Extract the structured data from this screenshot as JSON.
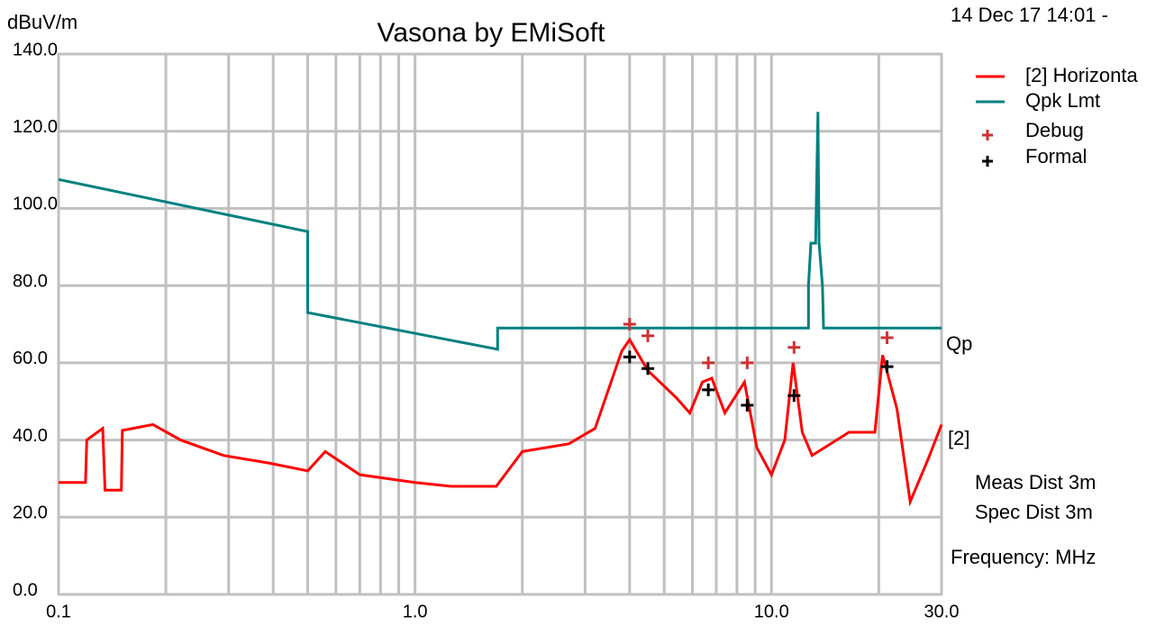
{
  "chart_data": {
    "type": "line",
    "title": "Vasona by EMiSoft",
    "y_label": "dBuV/m",
    "timestamp": "14 Dec 17 14:01 -",
    "x_scale": "log",
    "grid": true,
    "xlim": [
      0.1,
      30
    ],
    "ylim": [
      0,
      140
    ],
    "xticks": [
      0.1,
      {
        "value": 1,
        "label": "1.0"
      },
      {
        "value": 10,
        "label": "10.0"
      },
      {
        "value": 30,
        "label": "30.0"
      }
    ],
    "xminor": [
      0.2,
      0.3,
      0.4,
      0.5,
      0.6,
      0.7,
      0.8,
      0.9,
      2,
      3,
      4,
      5,
      6,
      7,
      8,
      9,
      20
    ],
    "yticks": [
      {
        "value": 0,
        "label": "0.0"
      },
      {
        "value": 20,
        "label": "20.0"
      },
      {
        "value": 40,
        "label": "40.0"
      },
      {
        "value": 60,
        "label": "60.0"
      },
      {
        "value": 80,
        "label": "80.0"
      },
      {
        "value": 100,
        "label": "100.0"
      },
      {
        "value": 120,
        "label": "120.0"
      },
      {
        "value": 140,
        "label": "140.0"
      }
    ],
    "series": [
      {
        "name": "[2] Horizonta",
        "color": "#ff0000",
        "x": [
          0.1,
          0.119,
          0.12,
          0.133,
          0.135,
          0.15,
          0.151,
          0.184,
          0.22,
          0.29,
          0.39,
          0.5,
          0.56,
          0.7,
          1.0,
          1.26,
          1.69,
          2.0,
          2.7,
          3.2,
          3.8,
          4.0,
          4.5,
          5.4,
          5.9,
          6.4,
          6.8,
          7.4,
          8.4,
          9.1,
          10.0,
          10.9,
          11.5,
          12.2,
          13.0,
          16.5,
          19.5,
          20.5,
          22.5,
          24.5,
          27.5,
          30
        ],
        "values": [
          29,
          29,
          40,
          43,
          27,
          27,
          42.5,
          44,
          40,
          36,
          34,
          32,
          37,
          31,
          29,
          28,
          28,
          37,
          39,
          43,
          63,
          66,
          58,
          51,
          47,
          55,
          56,
          47,
          55,
          38,
          31,
          40,
          60,
          42,
          36,
          42,
          42,
          62,
          48,
          24,
          35,
          44
        ]
      },
      {
        "name": "Qpk Lmt",
        "color": "#008080",
        "x": [
          0.1,
          0.5,
          0.5,
          1.705,
          1.705,
          12.7,
          12.7,
          12.9,
          13.3,
          13.5,
          13.6,
          13.9,
          14.0,
          30
        ],
        "values": [
          107.5,
          94,
          73,
          63.5,
          69,
          69,
          80,
          91,
          91,
          125,
          91,
          80,
          69,
          69
        ]
      },
      {
        "name": "Debug",
        "color": "#cc3333",
        "marker": "plus",
        "x": [
          4.0,
          4.5,
          6.65,
          8.55,
          11.57,
          21.1
        ],
        "values": [
          70,
          67,
          60,
          60,
          64,
          66.5
        ]
      },
      {
        "name": "Formal",
        "color": "#000000",
        "marker": "plus",
        "x": [
          4.0,
          4.5,
          6.65,
          8.55,
          11.57,
          21.1
        ],
        "values": [
          61.5,
          58.5,
          53,
          49,
          51.5,
          59
        ]
      }
    ],
    "right_labels": [
      "Qp",
      "[2]"
    ],
    "notes": [
      "Meas Dist 3m",
      "Spec Dist 3m",
      "Frequency: MHz"
    ]
  }
}
